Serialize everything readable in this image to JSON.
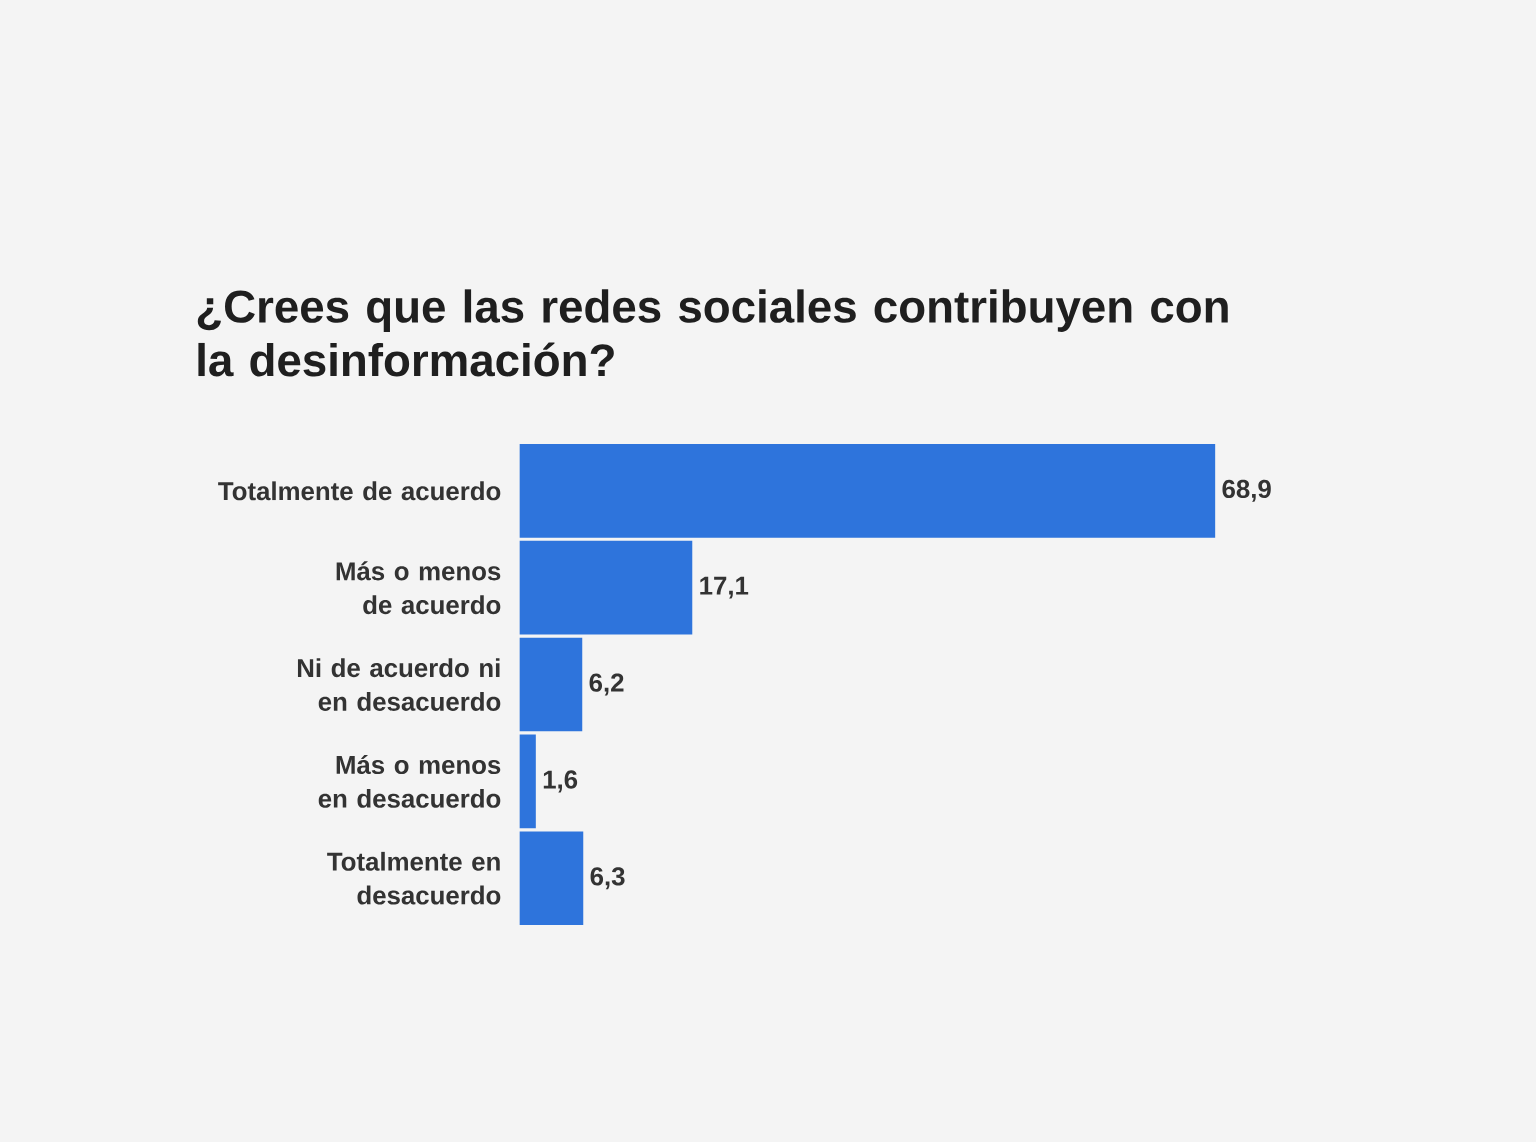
{
  "chart_data": {
    "type": "bar",
    "orientation": "horizontal",
    "title": "¿Crees que las redes sociales contribuyen con la desinformación?",
    "categories": [
      "Totalmente de acuerdo",
      "Más o menos de acuerdo",
      "Ni de acuerdo ni en desacuerdo",
      "Más o menos en desacuerdo",
      "Totalmente en desacuerdo"
    ],
    "values": [
      68.9,
      17.1,
      6.2,
      1.6,
      6.3
    ],
    "value_labels": [
      "68,9",
      "17,1",
      "6,2",
      "1,6",
      "6,3"
    ],
    "color": "#2e74dc"
  }
}
